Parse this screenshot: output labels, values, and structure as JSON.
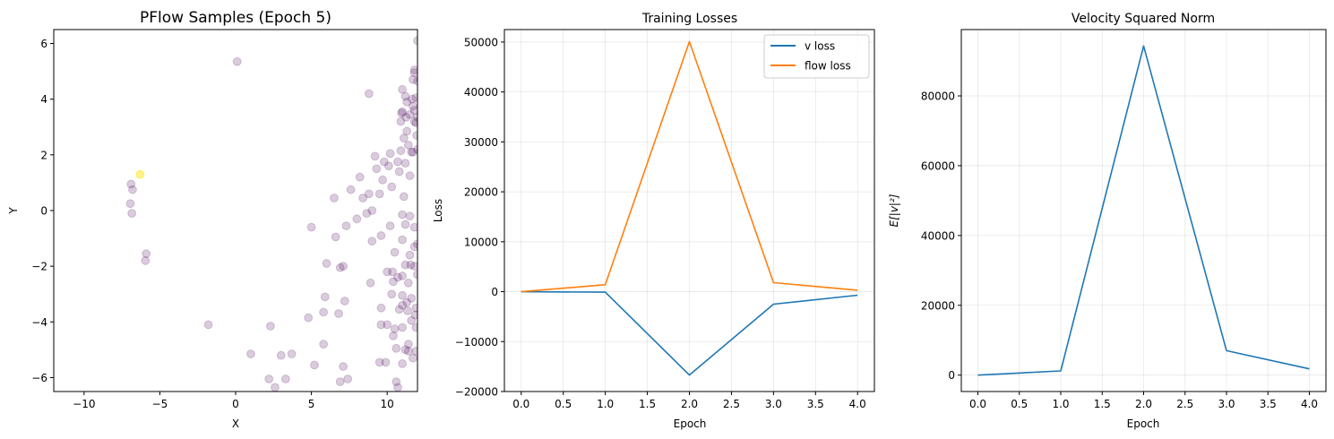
{
  "chart_data": [
    {
      "type": "scatter",
      "title": "PFlow Samples (Epoch 5)",
      "xlabel": "X",
      "ylabel": "Y",
      "xlim": [
        -12,
        12
      ],
      "ylim": [
        -6.5,
        6.5
      ],
      "xticks": [
        -10,
        -5,
        0,
        5,
        10
      ],
      "xtick_labels": [
        "−10",
        "−5",
        "0",
        "5",
        "10"
      ],
      "yticks": [
        -6,
        -4,
        -2,
        0,
        2,
        4,
        6
      ],
      "ytick_labels": [
        "−6",
        "−4",
        "−2",
        "0",
        "2",
        "4",
        "6"
      ],
      "grid": false,
      "colors": {
        "point": "#440154",
        "highlight": "#fde725"
      },
      "highlight_points": [
        [
          -6.3,
          1.3
        ]
      ],
      "points": [
        [
          -6.9,
          0.95
        ],
        [
          -6.8,
          0.75
        ],
        [
          -6.95,
          0.25
        ],
        [
          -6.85,
          -0.1
        ],
        [
          -5.9,
          -1.55
        ],
        [
          -5.95,
          -1.8
        ],
        [
          0.1,
          5.35
        ],
        [
          -1.8,
          -4.1
        ],
        [
          1.0,
          -5.15
        ],
        [
          2.3,
          -4.15
        ],
        [
          2.2,
          -6.05
        ],
        [
          2.6,
          -6.35
        ],
        [
          3.0,
          -5.2
        ],
        [
          3.3,
          -6.05
        ],
        [
          3.7,
          -5.15
        ],
        [
          4.8,
          -3.85
        ],
        [
          5.0,
          -0.6
        ],
        [
          5.2,
          -5.55
        ],
        [
          5.8,
          -4.8
        ],
        [
          5.8,
          -3.65
        ],
        [
          5.9,
          -3.1
        ],
        [
          6.0,
          -1.9
        ],
        [
          6.5,
          0.45
        ],
        [
          6.6,
          -0.95
        ],
        [
          6.8,
          -3.7
        ],
        [
          6.9,
          -2.05
        ],
        [
          6.9,
          -6.15
        ],
        [
          7.1,
          -5.6
        ],
        [
          7.2,
          -3.25
        ],
        [
          7.1,
          -2.0
        ],
        [
          7.3,
          -0.55
        ],
        [
          7.4,
          -6.05
        ],
        [
          7.6,
          0.75
        ],
        [
          8.0,
          -0.3
        ],
        [
          8.2,
          1.2
        ],
        [
          8.4,
          0.45
        ],
        [
          8.8,
          4.2
        ],
        [
          8.8,
          0.6
        ],
        [
          8.9,
          -2.6
        ],
        [
          9.0,
          -1.1
        ],
        [
          9.0,
          0.0
        ],
        [
          9.2,
          1.95
        ],
        [
          9.3,
          1.5
        ],
        [
          9.5,
          -5.45
        ],
        [
          9.5,
          0.6
        ],
        [
          9.6,
          -4.1
        ],
        [
          9.6,
          -3.5
        ],
        [
          9.6,
          -0.9
        ],
        [
          9.7,
          1.1
        ],
        [
          9.8,
          1.75
        ],
        [
          10.0,
          -2.2
        ],
        [
          10.0,
          -4.1
        ],
        [
          10.1,
          1.6
        ],
        [
          10.2,
          -0.55
        ],
        [
          10.2,
          2.05
        ],
        [
          10.3,
          0.85
        ],
        [
          10.3,
          -3.0
        ],
        [
          10.4,
          -4.5
        ],
        [
          10.5,
          -1.5
        ],
        [
          10.4,
          -2.55
        ],
        [
          10.5,
          -4.25
        ],
        [
          10.6,
          -4.95
        ],
        [
          10.6,
          -6.15
        ],
        [
          10.7,
          -6.35
        ],
        [
          10.7,
          1.75
        ],
        [
          10.8,
          1.4
        ],
        [
          10.9,
          2.15
        ],
        [
          10.9,
          3.2
        ],
        [
          11.0,
          3.55
        ],
        [
          11.0,
          4.35
        ],
        [
          11.0,
          -0.15
        ],
        [
          11.0,
          -1.05
        ],
        [
          11.0,
          -2.35
        ],
        [
          11.0,
          -3.05
        ],
        [
          11.0,
          -3.4
        ],
        [
          11.0,
          -4.2
        ],
        [
          11.0,
          -5.5
        ],
        [
          11.1,
          0.5
        ],
        [
          11.1,
          2.6
        ],
        [
          11.2,
          4.1
        ],
        [
          11.2,
          1.7
        ],
        [
          11.2,
          -0.5
        ],
        [
          11.2,
          -1.95
        ],
        [
          11.3,
          2.85
        ],
        [
          11.3,
          3.9
        ],
        [
          11.3,
          -3.3
        ],
        [
          11.4,
          -4.8
        ],
        [
          11.4,
          -5.05
        ],
        [
          11.4,
          2.35
        ],
        [
          11.4,
          -2.6
        ],
        [
          11.5,
          3.45
        ],
        [
          11.5,
          1.25
        ],
        [
          11.5,
          -1.6
        ],
        [
          11.5,
          -0.2
        ],
        [
          11.6,
          2.1
        ],
        [
          11.6,
          -3.15
        ],
        [
          11.6,
          -3.95
        ],
        [
          11.7,
          4.7
        ],
        [
          11.7,
          3.75
        ],
        [
          11.7,
          2.1
        ],
        [
          11.7,
          -5.3
        ],
        [
          11.8,
          5.05
        ],
        [
          11.8,
          4.95
        ],
        [
          11.8,
          3.6
        ],
        [
          11.8,
          3.2
        ],
        [
          11.8,
          -1.3
        ],
        [
          11.8,
          -2.0
        ],
        [
          11.8,
          -0.6
        ],
        [
          11.9,
          4.05
        ],
        [
          11.9,
          -3.5
        ],
        [
          11.9,
          -4.2
        ],
        [
          11.9,
          -5.05
        ],
        [
          11.9,
          3.15
        ],
        [
          12.0,
          6.1
        ],
        [
          12.0,
          4.65
        ],
        [
          12.0,
          3.35
        ],
        [
          12.0,
          -2.3
        ],
        [
          12.0,
          -1.2
        ],
        [
          12.0,
          2.2
        ],
        [
          10.95,
          3.5
        ],
        [
          11.25,
          3.35
        ],
        [
          11.65,
          4.0
        ],
        [
          11.95,
          2.7
        ],
        [
          10.8,
          -3.55
        ],
        [
          11.35,
          -3.6
        ],
        [
          11.55,
          -1.95
        ],
        [
          11.85,
          -3.75
        ],
        [
          10.7,
          -2.4
        ],
        [
          9.9,
          -5.45
        ],
        [
          10.35,
          -2.2
        ],
        [
          11.2,
          -5.0
        ],
        [
          8.65,
          -0.1
        ]
      ]
    },
    {
      "type": "line",
      "title": "Training Losses",
      "xlabel": "Epoch",
      "ylabel": "Loss",
      "xlim": [
        -0.2,
        4.2
      ],
      "ylim": [
        -20000,
        52500
      ],
      "xticks": [
        0.0,
        0.5,
        1.0,
        1.5,
        2.0,
        2.5,
        3.0,
        3.5,
        4.0
      ],
      "xtick_labels": [
        "0.0",
        "0.5",
        "1.0",
        "1.5",
        "2.0",
        "2.5",
        "3.0",
        "3.5",
        "4.0"
      ],
      "yticks": [
        -20000,
        -10000,
        0,
        10000,
        20000,
        30000,
        40000,
        50000
      ],
      "ytick_labels": [
        "−20000",
        "−10000",
        "0",
        "10000",
        "20000",
        "30000",
        "40000",
        "50000"
      ],
      "grid": true,
      "legend": "top-right",
      "x": [
        0,
        1,
        2,
        3,
        4
      ],
      "series": [
        {
          "name": "v loss",
          "color": "#1f77b4",
          "values": [
            0,
            -100,
            -16700,
            -2500,
            -700
          ]
        },
        {
          "name": "flow loss",
          "color": "#ff7f0e",
          "values": [
            0,
            1400,
            50100,
            1800,
            300
          ]
        }
      ]
    },
    {
      "type": "line",
      "title": "Velocity Squared Norm",
      "xlabel": "Epoch",
      "ylabel": "E[|v|²]",
      "xlim": [
        -0.2,
        4.2
      ],
      "ylim": [
        -4700,
        99000
      ],
      "xticks": [
        0.0,
        0.5,
        1.0,
        1.5,
        2.0,
        2.5,
        3.0,
        3.5,
        4.0
      ],
      "xtick_labels": [
        "0.0",
        "0.5",
        "1.0",
        "1.5",
        "2.0",
        "2.5",
        "3.0",
        "3.5",
        "4.0"
      ],
      "yticks": [
        0,
        20000,
        40000,
        60000,
        80000
      ],
      "ytick_labels": [
        "0",
        "20000",
        "40000",
        "60000",
        "80000"
      ],
      "grid": true,
      "x": [
        0,
        1,
        2,
        3,
        4
      ],
      "series": [
        {
          "color": "#1f77b4",
          "values": [
            0,
            1200,
            94300,
            7000,
            1800
          ]
        }
      ]
    }
  ]
}
